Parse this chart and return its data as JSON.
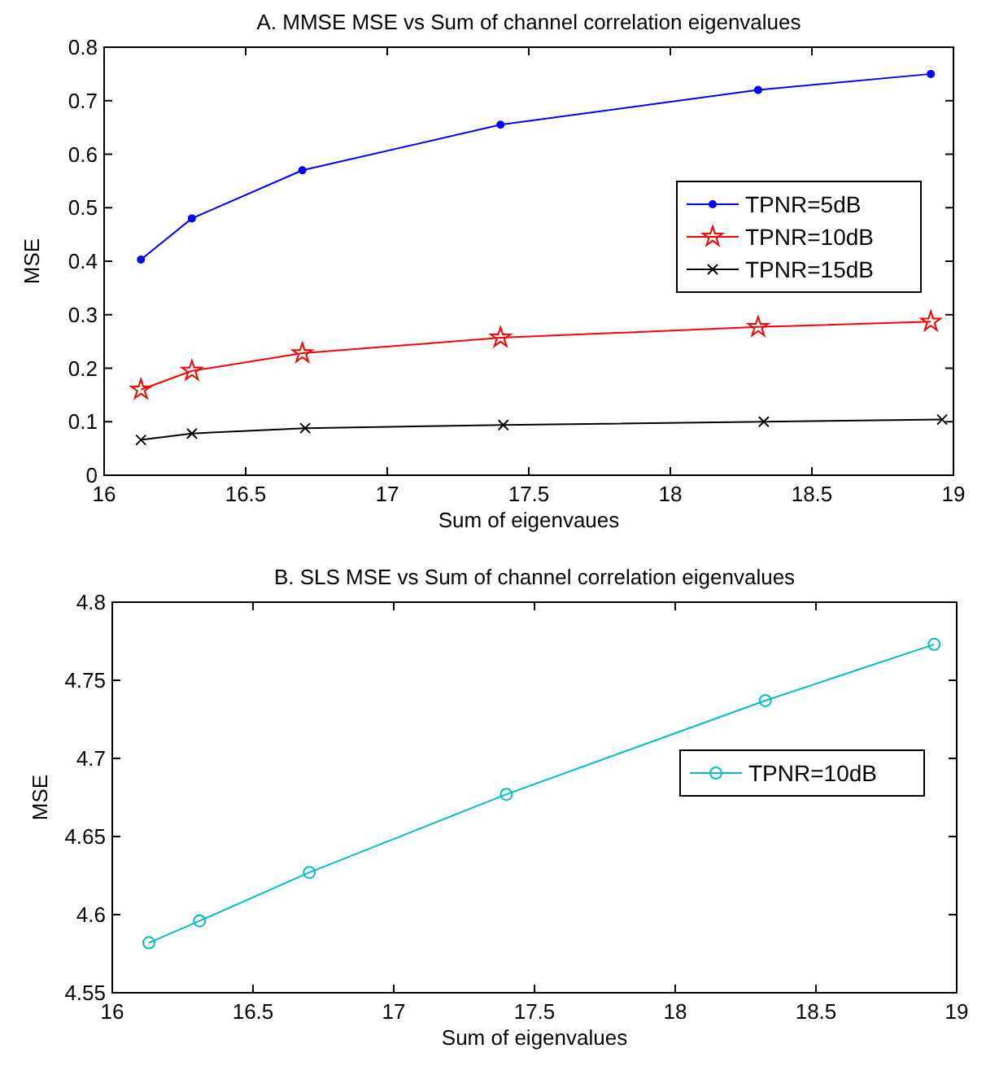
{
  "chart_data": [
    {
      "type": "line",
      "title": "A. MMSE MSE vs Sum of channel correlation eigenvalues",
      "xlabel": "Sum of eigenvaues",
      "ylabel": "MSE",
      "x": [
        16.13,
        16.31,
        16.7,
        17.4,
        18.31,
        18.92
      ],
      "xlim": [
        16,
        19
      ],
      "xticks": [
        16,
        16.5,
        17,
        17.5,
        18,
        18.5,
        19
      ],
      "ylim": [
        0,
        0.8
      ],
      "yticks": [
        0,
        0.1,
        0.2,
        0.3,
        0.4,
        0.5,
        0.6,
        0.7,
        0.8
      ],
      "grid": false,
      "legend": "right",
      "series": [
        {
          "name": "TPNR=5dB",
          "color": "#0000ff",
          "marker": "circle",
          "values": [
            0.403,
            0.48,
            0.57,
            0.655,
            0.72,
            0.75
          ]
        },
        {
          "name": "TPNR=10dB",
          "color": "#ff0000",
          "marker": "star",
          "values": [
            0.16,
            0.195,
            0.228,
            0.257,
            0.277,
            0.287
          ]
        },
        {
          "name": "TPNR=15dB",
          "color": "#000000",
          "marker": "cross",
          "x": [
            16.13,
            16.31,
            16.71,
            17.41,
            18.33,
            18.96
          ],
          "values": [
            0.066,
            0.078,
            0.088,
            0.094,
            0.1,
            0.104
          ]
        }
      ]
    },
    {
      "type": "line",
      "title": "B. SLS MSE vs Sum of channel correlation eigenvalues",
      "xlabel": "Sum of eigenvalues",
      "ylabel": "MSE",
      "x": [
        16.13,
        16.31,
        16.7,
        17.4,
        18.32,
        18.92
      ],
      "xlim": [
        16,
        19
      ],
      "xticks": [
        16,
        16.5,
        17,
        17.5,
        18,
        18.5,
        19
      ],
      "ylim": [
        4.55,
        4.8
      ],
      "yticks": [
        4.55,
        4.6,
        4.65,
        4.7,
        4.75,
        4.8
      ],
      "grid": false,
      "legend": "right",
      "series": [
        {
          "name": "TPNR=10dB",
          "color": "#00bfbf",
          "marker": "circle",
          "values": [
            4.582,
            4.596,
            4.627,
            4.677,
            4.737,
            4.773
          ]
        }
      ]
    }
  ]
}
